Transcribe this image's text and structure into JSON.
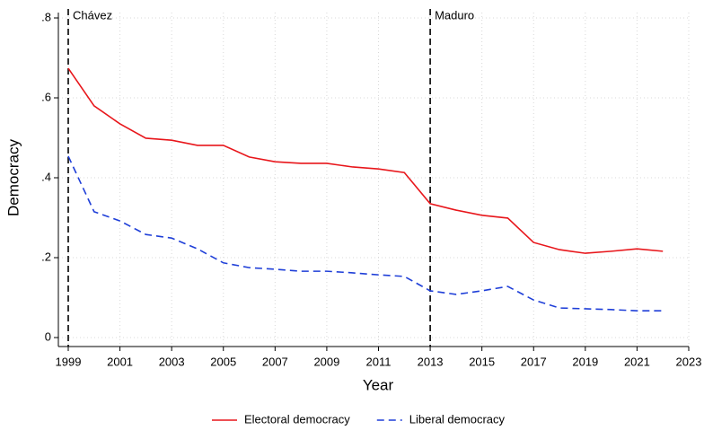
{
  "chart_data": {
    "type": "line",
    "x_label": "Year",
    "y_label": "Democracy",
    "x": [
      1999,
      2000,
      2001,
      2002,
      2003,
      2004,
      2005,
      2006,
      2007,
      2008,
      2009,
      2010,
      2011,
      2012,
      2013,
      2014,
      2015,
      2016,
      2017,
      2018,
      2019,
      2020,
      2021,
      2022
    ],
    "series": [
      {
        "name": "Electoral democracy",
        "color": "#e8161b",
        "style": "solid",
        "values": [
          0.674,
          0.58,
          0.535,
          0.499,
          0.494,
          0.481,
          0.481,
          0.452,
          0.44,
          0.436,
          0.436,
          0.427,
          0.422,
          0.413,
          0.335,
          0.319,
          0.306,
          0.299,
          0.238,
          0.22,
          0.211,
          0.216,
          0.222,
          0.216
        ]
      },
      {
        "name": "Liberal democracy",
        "color": "#1f3fd8",
        "style": "dashed",
        "values": [
          0.454,
          0.315,
          0.292,
          0.258,
          0.249,
          0.222,
          0.187,
          0.175,
          0.171,
          0.166,
          0.166,
          0.162,
          0.157,
          0.153,
          0.117,
          0.108,
          0.117,
          0.128,
          0.094,
          0.074,
          0.072,
          0.07,
          0.067,
          0.067
        ]
      }
    ],
    "annotations": [
      {
        "x": 1999,
        "label": "Chávez"
      },
      {
        "x": 2013,
        "label": "Maduro"
      }
    ],
    "xlim": [
      1999,
      2023
    ],
    "xticks": [
      1999,
      2001,
      2003,
      2005,
      2007,
      2009,
      2011,
      2013,
      2015,
      2017,
      2019,
      2021,
      2023
    ],
    "ylim": [
      0,
      0.8
    ],
    "yticks": [
      0,
      {
        "value": 0.2,
        "label": ".2"
      },
      {
        "value": 0.4,
        "label": ".4"
      },
      {
        "value": 0.6,
        "label": ".6"
      },
      {
        "value": 0.8,
        "label": ".8"
      }
    ],
    "grid": true,
    "legend": "bottom"
  }
}
